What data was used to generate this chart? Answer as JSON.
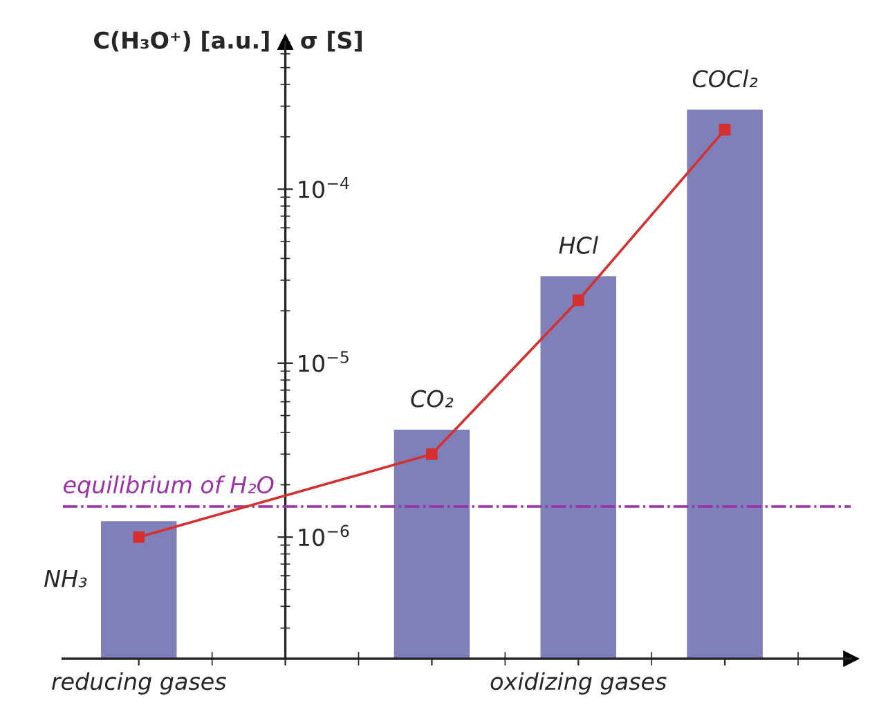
{
  "chart_data": {
    "type": "bar",
    "ylabel": "C(H₃O⁺) [a.u.]",
    "y2label": "σ [S]",
    "categories": [
      "reducing gases",
      null,
      null,
      "oxidizing gases",
      null
    ],
    "log": "y",
    "ylim": [
      2e-07,
      0.0007
    ],
    "yticks": [
      {
        "value": 1e-06,
        "label": "10$^{−6}$"
      },
      {
        "value": 1e-05,
        "label": "10$^{−5}$"
      },
      {
        "value": 0.0001,
        "label": "10$^{−4}$"
      }
    ],
    "grid": false,
    "legend": false,
    "series": [
      {
        "color": "#7f7fb9",
        "values": [
          1.25e-06,
          null,
          4.2e-06,
          3.2e-05,
          0.00029
        ]
      },
      {
        "type": "line",
        "color": "#d62f2f",
        "marker": "square",
        "line_style": "solid",
        "values": [
          1e-06,
          null,
          3e-06,
          2.3e-05,
          0.00022
        ]
      }
    ],
    "ref_lines": [
      {
        "axis": "y",
        "value": 1.5e-06,
        "label": "equilibrium of H₂O",
        "color": "#9b30a8",
        "line_style": "dashdot"
      }
    ],
    "annotations": [
      "NH₃",
      "CO₂",
      "HCl",
      "COCl₂"
    ]
  }
}
